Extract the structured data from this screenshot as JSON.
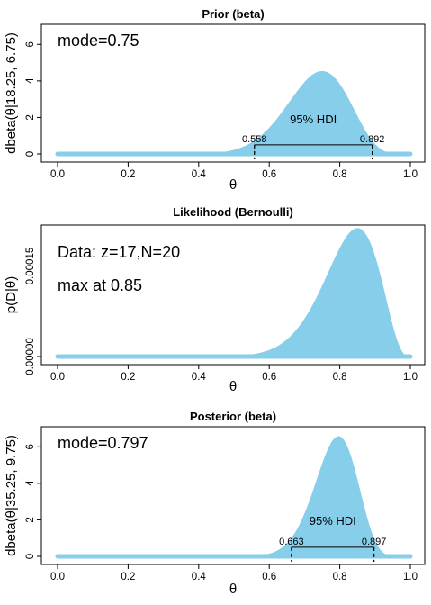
{
  "colors": {
    "fill": "#87ceeb",
    "line": "#000000"
  },
  "chart_data": [
    {
      "type": "area",
      "title": "Prior (beta)",
      "xlabel": "θ",
      "ylabel": "dbeta(θ|18.25, 6.75)",
      "xlim": [
        0,
        1
      ],
      "ylim": [
        0,
        7
      ],
      "x_ticks": [
        0.0,
        0.2,
        0.4,
        0.6,
        0.8,
        1.0
      ],
      "x_tick_labels": [
        "0.0",
        "0.2",
        "0.4",
        "0.6",
        "0.8",
        "1.0"
      ],
      "y_ticks": [
        0,
        2,
        4,
        6
      ],
      "y_tick_labels": [
        "0",
        "2",
        "4",
        "6"
      ],
      "distribution": {
        "family": "beta",
        "a": 18.25,
        "b": 6.75
      },
      "annotations": [
        "mode=0.75"
      ],
      "hdi": {
        "label": "95% HDI",
        "low": 0.558,
        "high": 0.892,
        "low_label": "0.558",
        "high_label": "0.892",
        "level": 0.5
      }
    },
    {
      "type": "area",
      "title": "Likelihood (Bernoulli)",
      "xlabel": "θ",
      "ylabel": "p(D|θ)",
      "xlim": [
        0,
        1
      ],
      "ylim": [
        0,
        0.000215
      ],
      "x_ticks": [
        0.0,
        0.2,
        0.4,
        0.6,
        0.8,
        1.0
      ],
      "x_tick_labels": [
        "0.0",
        "0.2",
        "0.4",
        "0.6",
        "0.8",
        "1.0"
      ],
      "y_ticks": [
        0,
        0.00015
      ],
      "y_tick_labels": [
        "0.00000",
        "0.00015"
      ],
      "distribution": {
        "family": "bernoulli_likelihood",
        "z": 17,
        "N": 20
      },
      "annotations": [
        "Data: z=17,N=20",
        "max at 0.85"
      ]
    },
    {
      "type": "area",
      "title": "Posterior (beta)",
      "xlabel": "θ",
      "ylabel": "dbeta(θ|35.25, 9.75)",
      "xlim": [
        0,
        1
      ],
      "ylim": [
        0,
        7
      ],
      "x_ticks": [
        0.0,
        0.2,
        0.4,
        0.6,
        0.8,
        1.0
      ],
      "x_tick_labels": [
        "0.0",
        "0.2",
        "0.4",
        "0.6",
        "0.8",
        "1.0"
      ],
      "y_ticks": [
        0,
        2,
        4,
        6
      ],
      "y_tick_labels": [
        "0",
        "2",
        "4",
        "6"
      ],
      "distribution": {
        "family": "beta",
        "a": 35.25,
        "b": 9.75
      },
      "annotations": [
        "mode=0.797"
      ],
      "hdi": {
        "label": "95% HDI",
        "low": 0.663,
        "high": 0.897,
        "low_label": "0.663",
        "high_label": "0.897",
        "level": 0.5
      }
    }
  ]
}
